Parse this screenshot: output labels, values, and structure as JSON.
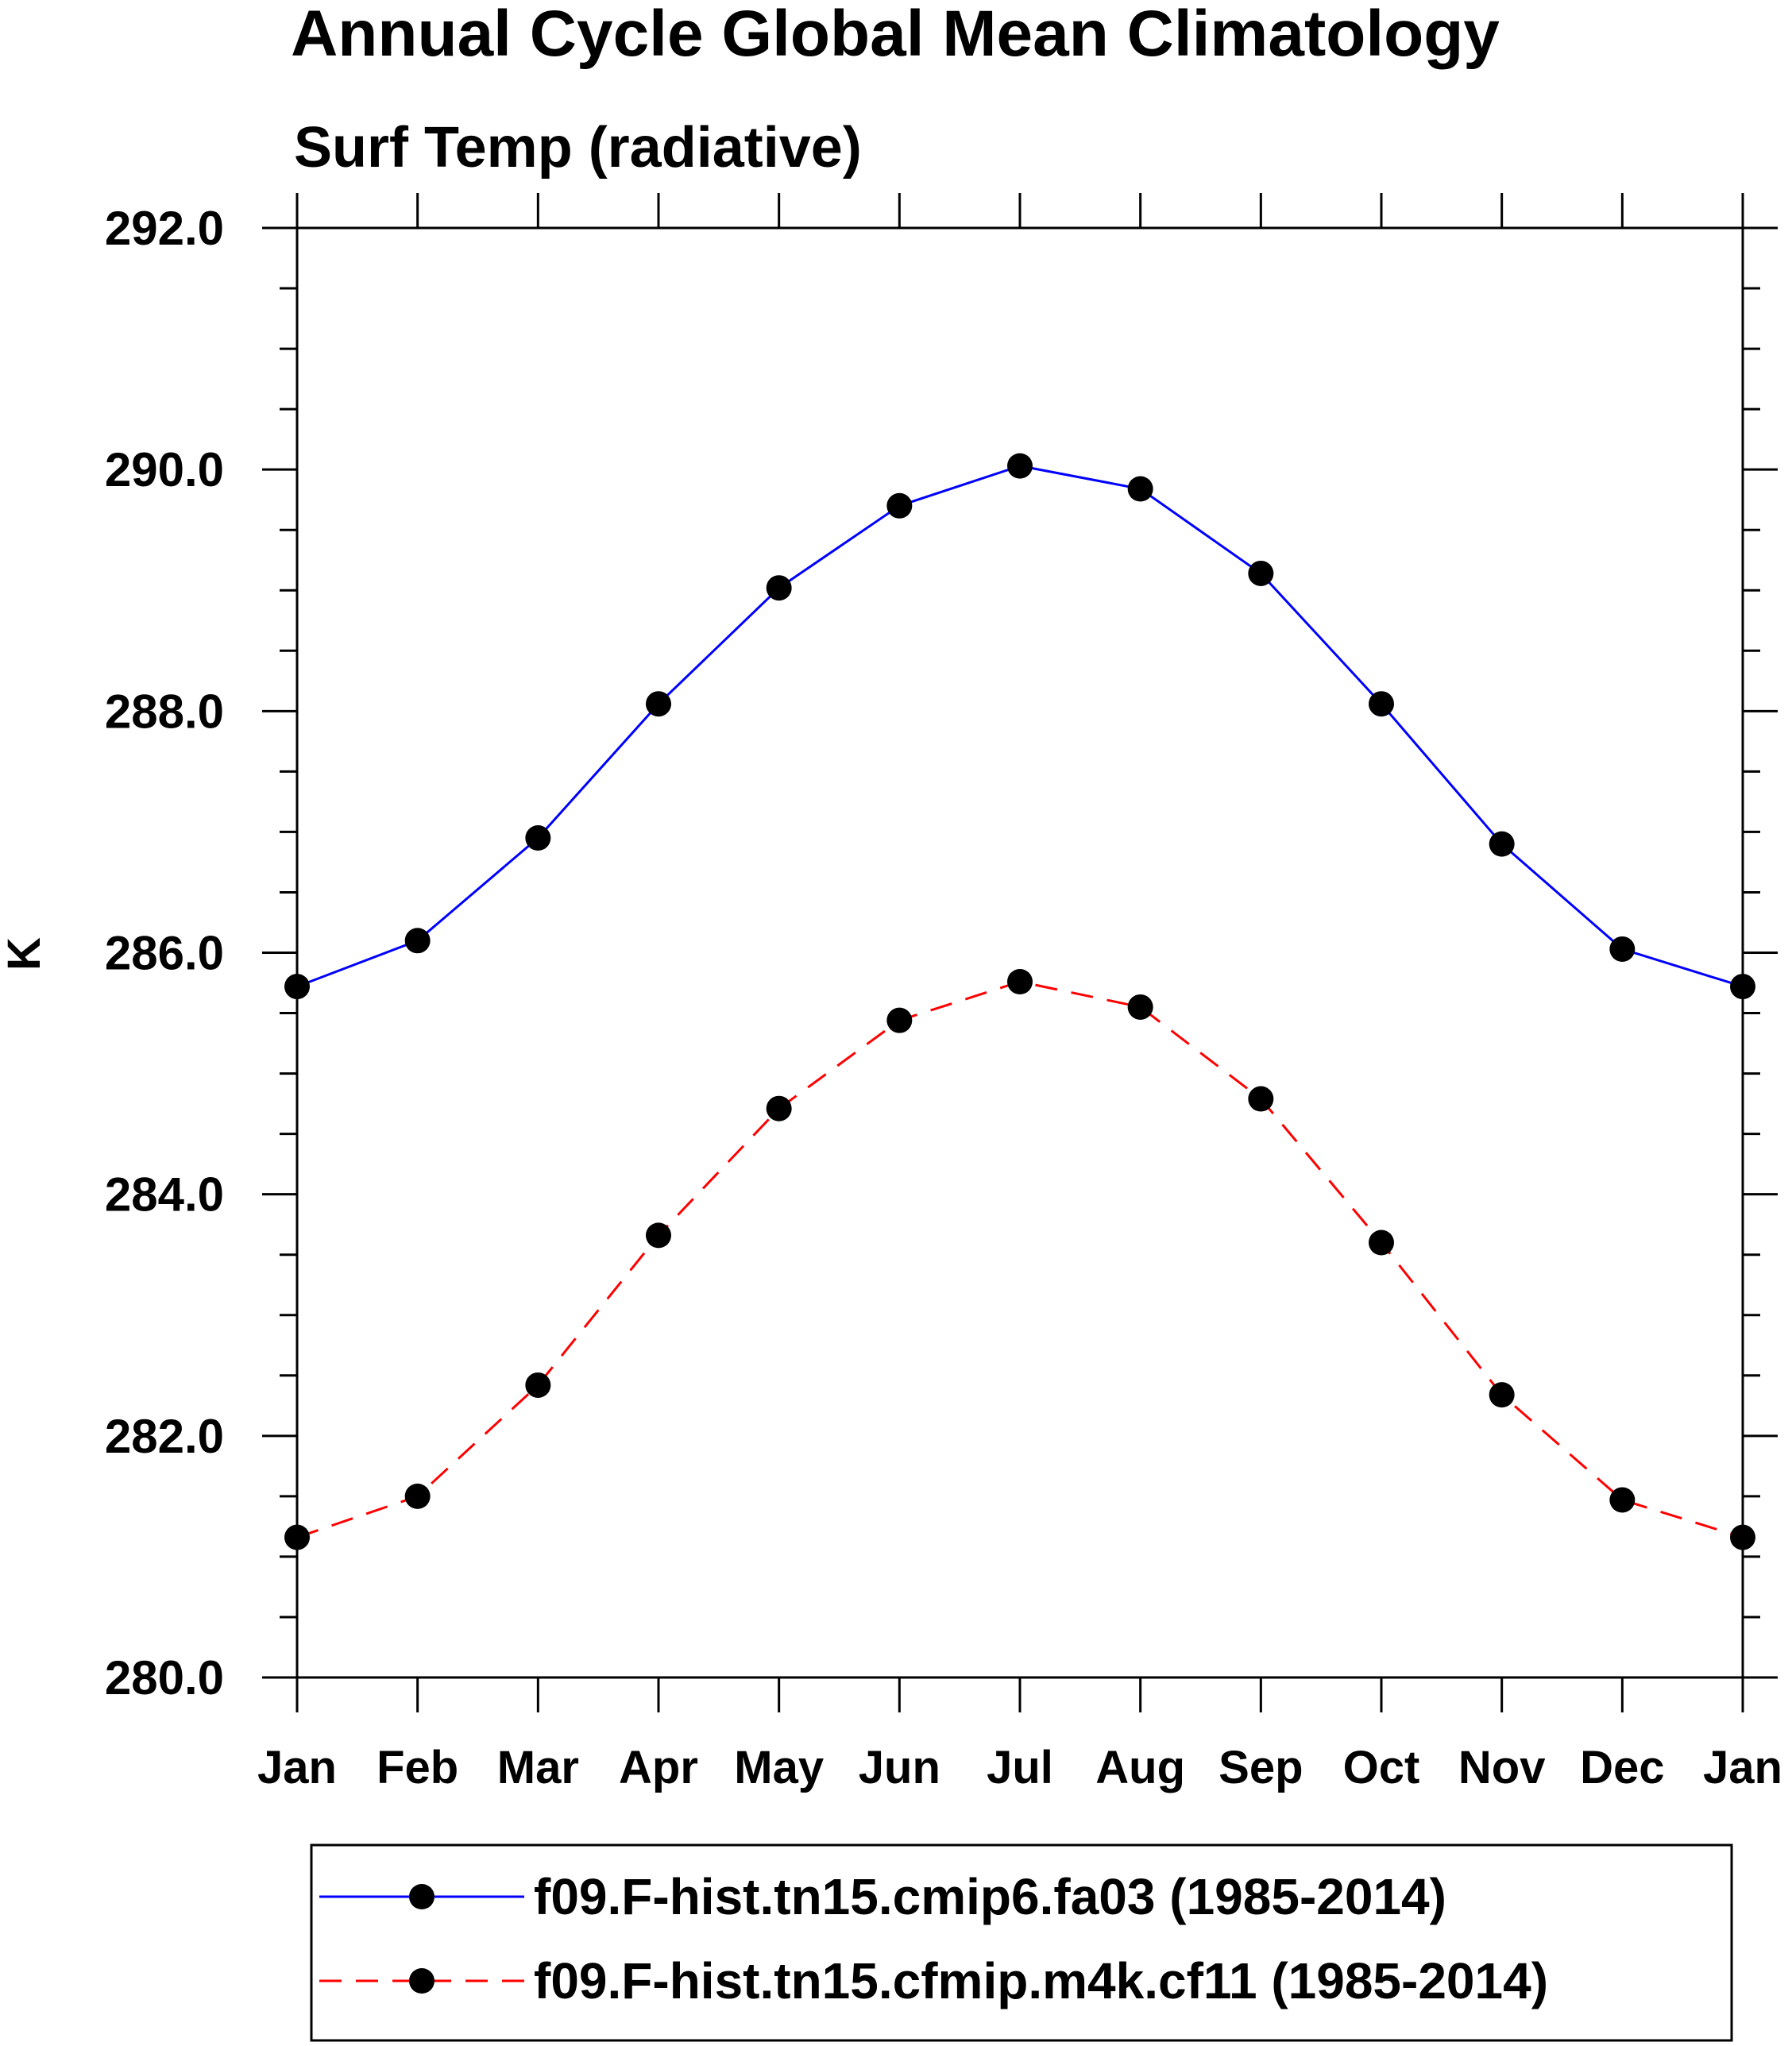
{
  "chart_data": {
    "type": "line",
    "title": "Annual Cycle Global Mean Climatology",
    "subtitle": "Surf Temp (radiative)",
    "xlabel": "",
    "ylabel": "K",
    "categories": [
      "Jan",
      "Feb",
      "Mar",
      "Apr",
      "May",
      "Jun",
      "Jul",
      "Aug",
      "Sep",
      "Oct",
      "Nov",
      "Dec",
      "Jan"
    ],
    "ylim": [
      280.0,
      292.0
    ],
    "yticks": [
      "280.0",
      "282.0",
      "284.0",
      "286.0",
      "288.0",
      "290.0",
      "292.0"
    ],
    "ytick_values": [
      280,
      282,
      284,
      286,
      288,
      290,
      292
    ],
    "grid": false,
    "legend_position": "bottom",
    "series": [
      {
        "name": "f09.F-hist.tn15.cmip6.fa03 (1985-2014)",
        "color": "#0000ff",
        "dashed": false,
        "values": [
          285.72,
          286.1,
          286.95,
          288.06,
          289.02,
          289.7,
          290.03,
          289.84,
          289.14,
          288.06,
          286.9,
          286.03,
          285.72
        ]
      },
      {
        "name": "f09.F-hist.tn15.cfmip.m4k.cf11 (1985-2014)",
        "color": "#ff0000",
        "dashed": true,
        "values": [
          281.16,
          281.5,
          282.42,
          283.66,
          284.71,
          285.44,
          285.76,
          285.55,
          284.79,
          283.6,
          282.34,
          281.47,
          281.16
        ]
      }
    ]
  }
}
